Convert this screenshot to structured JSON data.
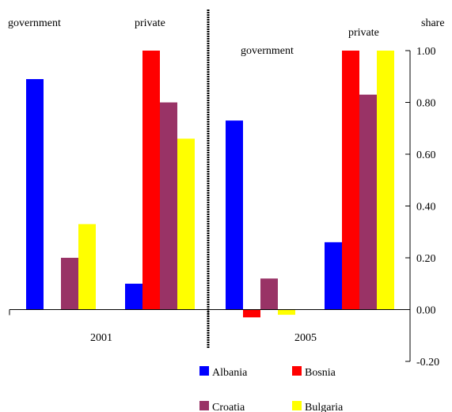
{
  "chart_data": {
    "type": "bar",
    "ylabel": "share",
    "ylim": [
      -0.2,
      1.0
    ],
    "yticks": [
      -0.2,
      0.0,
      0.2,
      0.4,
      0.6,
      0.8,
      1.0
    ],
    "ytick_labels": [
      "-0.20",
      "0.00",
      "0.20",
      "0.40",
      "0.60",
      "0.80",
      "1.00"
    ],
    "years": [
      "2001",
      "2005"
    ],
    "group_labels": {
      "2001": [
        "government",
        "private"
      ],
      "2005": [
        "government",
        "private"
      ]
    },
    "series": [
      {
        "name": "Albania",
        "color": "#0000ff",
        "values": {
          "2001": {
            "government": 0.89,
            "private": 0.1
          },
          "2005": {
            "government": 0.73,
            "private": 0.26
          }
        }
      },
      {
        "name": "Bosnia",
        "color": "#ff0000",
        "values": {
          "2001": {
            "government": 0.0,
            "private": 1.0
          },
          "2005": {
            "government": -0.03,
            "private": 1.0
          }
        }
      },
      {
        "name": "Croatia",
        "color": "#993366",
        "values": {
          "2001": {
            "government": 0.2,
            "private": 0.8
          },
          "2005": {
            "government": 0.12,
            "private": 0.83
          }
        }
      },
      {
        "name": "Bulgaria",
        "color": "#ffff00",
        "values": {
          "2001": {
            "government": 0.33,
            "private": 0.66
          },
          "2005": {
            "government": -0.02,
            "private": 1.0
          }
        }
      }
    ],
    "legend_position": "bottom"
  }
}
